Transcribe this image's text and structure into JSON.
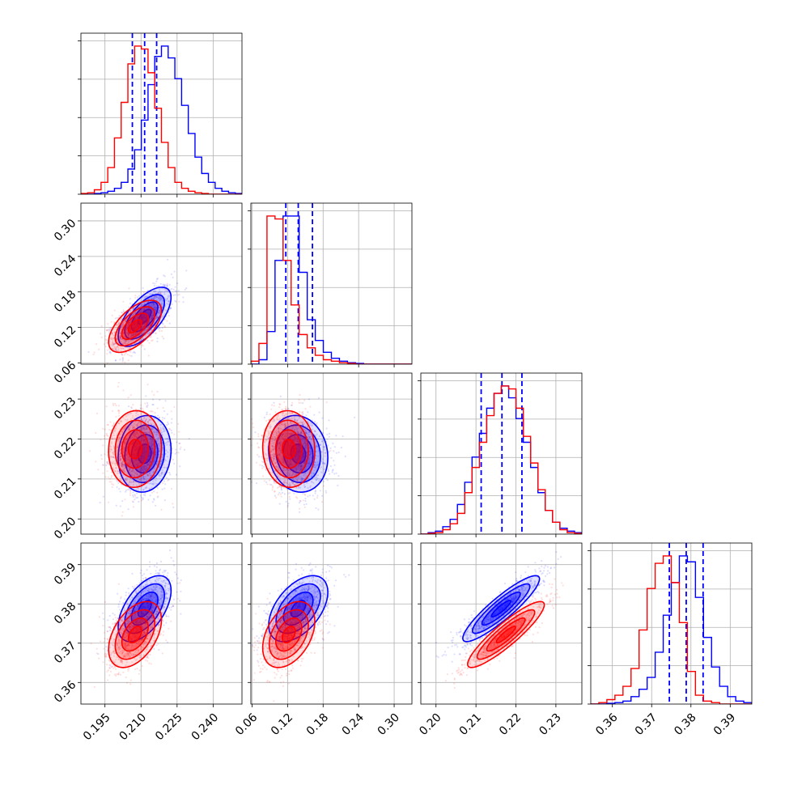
{
  "chart_data": {
    "type": "scatter",
    "subtype": "corner-plot",
    "grid": true,
    "parameters": [
      {
        "ticks": [
          "0.195",
          "0.210",
          "0.225",
          "0.240"
        ],
        "range": [
          0.185,
          0.252
        ]
      },
      {
        "ticks": [
          "0.06",
          "0.12",
          "0.18",
          "0.24",
          "0.30"
        ],
        "range": [
          0.058,
          0.33
        ]
      },
      {
        "ticks": [
          "0.20",
          "0.21",
          "0.22",
          "0.23"
        ],
        "range": [
          0.1962,
          0.2365
        ]
      },
      {
        "ticks": [
          "0.36",
          "0.37",
          "0.38",
          "0.39"
        ],
        "range": [
          0.3545,
          0.3955
        ]
      }
    ],
    "series": [
      {
        "color": "#0000ff",
        "mean": [
          0.2115,
          0.138,
          0.2163,
          0.3788
        ],
        "sd": [
          0.0055,
          0.025,
          0.0048,
          0.0042
        ],
        "corr": [
          [
            0,
            1,
            0.65
          ],
          [
            0,
            2,
            0.1
          ],
          [
            0,
            3,
            0.55
          ],
          [
            1,
            2,
            -0.1
          ],
          [
            1,
            3,
            0.5
          ],
          [
            2,
            3,
            0.9
          ]
        ],
        "histograms": [
          {
            "bins": [
              0.185,
              0.252
            ],
            "counts": [
              0,
              0,
              0.5,
              1,
              2,
              4,
              8,
              17,
              30,
              50,
              74,
              93,
              100,
              92,
              78,
              60,
              41,
              25,
              14,
              8,
              4,
              2,
              1,
              0.5
            ]
          },
          {
            "bins": [
              0.058,
              0.33
            ],
            "counts": [
              0,
              3,
              22,
              70,
              100,
              100,
              62,
              30,
              16,
              8,
              4,
              2,
              1,
              0.5,
              0,
              0,
              0,
              0,
              0,
              0
            ]
          },
          {
            "bins": [
              0.1962,
              0.2365
            ],
            "counts": [
              0,
              1,
              2,
              5,
              10,
              20,
              35,
              52,
              68,
              85,
              95,
              100,
              92,
              78,
              62,
              45,
              28,
              16,
              8,
              4,
              2,
              1
            ]
          },
          {
            "bins": [
              0.3545,
              0.3955
            ],
            "counts": [
              0,
              0,
              0.5,
              1,
              2,
              5,
              10,
              18,
              35,
              60,
              82,
              100,
              96,
              72,
              45,
              25,
              12,
              5,
              2,
              1
            ]
          }
        ],
        "quantile_lines": [
          [
            0.2064,
            0.2115,
            0.2165
          ],
          [
            0.117,
            0.138,
            0.162
          ],
          [
            0.2113,
            0.2165,
            0.2215
          ],
          [
            0.3745,
            0.3788,
            0.3831
          ]
        ]
      },
      {
        "color": "#ff0000",
        "mean": [
          0.2075,
          0.122,
          0.2175,
          0.3722
        ],
        "sd": [
          0.0055,
          0.022,
          0.0048,
          0.0042
        ],
        "corr": [
          [
            0,
            1,
            0.6
          ],
          [
            0,
            2,
            0.05
          ],
          [
            0,
            3,
            0.45
          ],
          [
            1,
            2,
            -0.05
          ],
          [
            1,
            3,
            0.4
          ],
          [
            2,
            3,
            0.9
          ]
        ],
        "histograms": [
          {
            "bins": [
              0.185,
              0.252
            ],
            "counts": [
              0.5,
              1,
              3,
              8,
              18,
              38,
              62,
              88,
              100,
              98,
              82,
              58,
              35,
              18,
              8,
              4,
              2,
              1,
              0.5,
              0,
              0,
              0,
              0,
              0
            ]
          },
          {
            "bins": [
              0.058,
              0.33
            ],
            "counts": [
              2,
              14,
              100,
              98,
              70,
              40,
              20,
              11,
              6,
              3,
              2,
              1,
              0.5,
              0,
              0,
              0,
              0,
              0,
              0,
              0
            ]
          },
          {
            "bins": [
              0.1962,
              0.2365
            ],
            "counts": [
              0,
              0.5,
              1,
              3,
              7,
              14,
              28,
              45,
              62,
              80,
              95,
              100,
              98,
              85,
              66,
              48,
              30,
              16,
              8,
              3,
              1,
              0.5
            ]
          },
          {
            "bins": [
              0.3545,
              0.3955
            ],
            "counts": [
              0,
              1,
              3,
              6,
              12,
              24,
              50,
              78,
              95,
              100,
              82,
              55,
              22,
              6,
              2,
              1,
              0,
              0,
              0,
              0
            ]
          }
        ],
        "quantile_lines": []
      }
    ]
  }
}
